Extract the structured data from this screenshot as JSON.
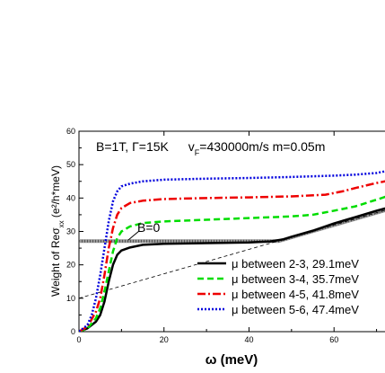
{
  "chart_data": {
    "type": "line",
    "title": "",
    "annotation": {
      "parameters_left": "B=1T, Γ=15K",
      "parameters_right_prefix": "v",
      "parameters_right_sub": "F",
      "parameters_right_suffix": "=430000m/s   m=0.05m",
      "b0_label": "B=0"
    },
    "xlabel": "ω (meV)",
    "ylabel_prefix": "Weight of Reσ",
    "ylabel_sub": "xx",
    "ylabel_suffix": " (e²/h*meV)",
    "xlim": [
      0,
      76
    ],
    "ylim": [
      0,
      60
    ],
    "x_ticks": [
      0,
      20,
      40,
      60
    ],
    "y_ticks": [
      0,
      10,
      20,
      30,
      40,
      50,
      60
    ],
    "series": [
      {
        "name": "μ between 2-3, 29.1meV",
        "color": "#000000",
        "dash": "solid",
        "x": [
          0,
          2,
          4,
          5,
          6,
          7,
          8,
          9,
          10,
          12,
          15,
          20,
          30,
          40,
          45,
          48,
          50,
          55,
          60,
          65,
          70,
          76
        ],
        "y": [
          0,
          1,
          3,
          5,
          9,
          15,
          20,
          23,
          24.3,
          25.2,
          26,
          26.3,
          26.5,
          26.7,
          27,
          27.6,
          28.4,
          30.2,
          32.4,
          34.3,
          36.2,
          38.3
        ]
      },
      {
        "name": "μ between 3-4, 35.7meV",
        "color": "#00dd00",
        "dash": "dash",
        "x": [
          0,
          2,
          4,
          5,
          6,
          7,
          8,
          9,
          10,
          12,
          15,
          20,
          30,
          40,
          50,
          55,
          60,
          65,
          70,
          76
        ],
        "y": [
          0,
          1,
          4,
          7,
          12,
          18,
          24,
          28,
          30,
          31.5,
          32.5,
          33,
          33.5,
          34,
          34.5,
          35,
          36.2,
          37.5,
          39.5,
          42
        ]
      },
      {
        "name": "μ between 4-5, 41.8meV",
        "color": "#ee0000",
        "dash": "dashdot",
        "x": [
          0,
          2,
          4,
          5,
          6,
          7,
          8,
          9,
          10,
          12,
          15,
          20,
          30,
          40,
          50,
          58,
          62,
          65,
          70,
          76
        ],
        "y": [
          0,
          1.5,
          6,
          10,
          17,
          25,
          31,
          35,
          37,
          38.5,
          39.2,
          39.7,
          40,
          40.2,
          40.5,
          41,
          42,
          43,
          44.5,
          46
        ]
      },
      {
        "name": "μ between 5-6, 47.4meV",
        "color": "#0000dd",
        "dash": "dot",
        "x": [
          0,
          2,
          3,
          4,
          5,
          6,
          7,
          8,
          9,
          10,
          12,
          15,
          20,
          30,
          40,
          50,
          60,
          65,
          70,
          74,
          76
        ],
        "y": [
          0,
          2,
          5,
          10,
          17,
          25,
          33,
          39,
          42,
          43.5,
          44.3,
          45,
          45.5,
          45.8,
          46,
          46.3,
          46.7,
          47,
          47.5,
          48.5,
          49.2
        ]
      }
    ],
    "reference_lines": [
      {
        "name": "B=0",
        "style": "hatched-horizontal",
        "x": [
          0,
          47,
          76
        ],
        "y": [
          27.1,
          27.1,
          37.8
        ]
      },
      {
        "name": "asymptote",
        "style": "thin-dashed",
        "x": [
          0,
          76
        ],
        "y": [
          10,
          37.8
        ]
      }
    ]
  }
}
